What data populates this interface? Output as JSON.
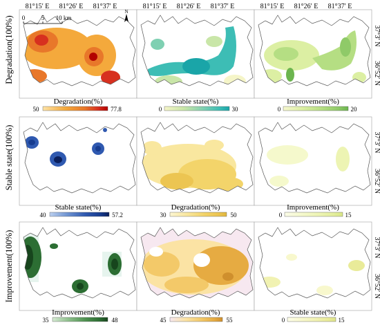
{
  "top_coords": [
    "81°15′ E",
    "81°26′ E",
    "81°37′ E"
  ],
  "right_coords": [
    "37°3′ N",
    "36°52′ N"
  ],
  "north_arrow": "N",
  "scale_bar": {
    "ticks": [
      "0",
      "5",
      "10 km"
    ]
  },
  "rows": [
    {
      "label": "Degradation(100%)",
      "panels": [
        {
          "legend": "Degradation(%)",
          "min": "50",
          "max": "77.8",
          "ramp": "degradation-high"
        },
        {
          "legend": "Stable state(%)",
          "min": "0",
          "max": "30",
          "ramp": "stable-teal"
        },
        {
          "legend": "Improvement(%)",
          "min": "0",
          "max": "20",
          "ramp": "improvement-green"
        }
      ]
    },
    {
      "label": "Stable state(100%)",
      "panels": [
        {
          "legend": "Stable state(%)",
          "min": "40",
          "max": "57.2",
          "ramp": "stable-blue"
        },
        {
          "legend": "Degradation(%)",
          "min": "30",
          "max": "50",
          "ramp": "degradation-yellow"
        },
        {
          "legend": "Improvement(%)",
          "min": "0",
          "max": "15",
          "ramp": "improvement-pale"
        }
      ]
    },
    {
      "label": "Improvement(100%)",
      "panels": [
        {
          "legend": "Improvement(%)",
          "min": "35",
          "max": "48",
          "ramp": "improvement-dark"
        },
        {
          "legend": "Degradation(%)",
          "min": "45",
          "max": "55",
          "ramp": "degradation-mixed"
        },
        {
          "legend": "Stable state(%)",
          "min": "0",
          "max": "15",
          "ramp": "stable-pale"
        }
      ]
    }
  ],
  "colors": {
    "degradation-high": [
      "#fde3a7",
      "#f4a93c",
      "#e8772a",
      "#d7301f",
      "#b30000"
    ],
    "stable-teal": [
      "#f5f5c8",
      "#c9e6a8",
      "#7fd0b2",
      "#3dbdb5",
      "#1aa5a8"
    ],
    "improvement-green": [
      "#f6f7cf",
      "#dcefa3",
      "#b5de83",
      "#8fca68",
      "#6cb54f"
    ],
    "stable-blue": [
      "#bcd0ef",
      "#6e93d1",
      "#2f59b0",
      "#173c8f",
      "#0a1f5c"
    ],
    "degradation-yellow": [
      "#fdf6d2",
      "#f9e79f",
      "#f3d46a",
      "#ecc552",
      "#e1b73d"
    ],
    "improvement-pale": [
      "#fbfce8",
      "#f5f9cc",
      "#edf4b3",
      "#e3ee9c",
      "#d8e686"
    ],
    "improvement-dark": [
      "#d6ead3",
      "#8dbf8b",
      "#4e9150",
      "#2c6e33",
      "#17451d"
    ],
    "degradation-mixed": [
      "#f7e8f0",
      "#fbe3a4",
      "#f3c969",
      "#e6ab42",
      "#cf8f2d"
    ],
    "stable-pale": [
      "#fdfde9",
      "#f8f8cd",
      "#f1f2b2",
      "#e9eb99",
      "#dde38a"
    ]
  }
}
